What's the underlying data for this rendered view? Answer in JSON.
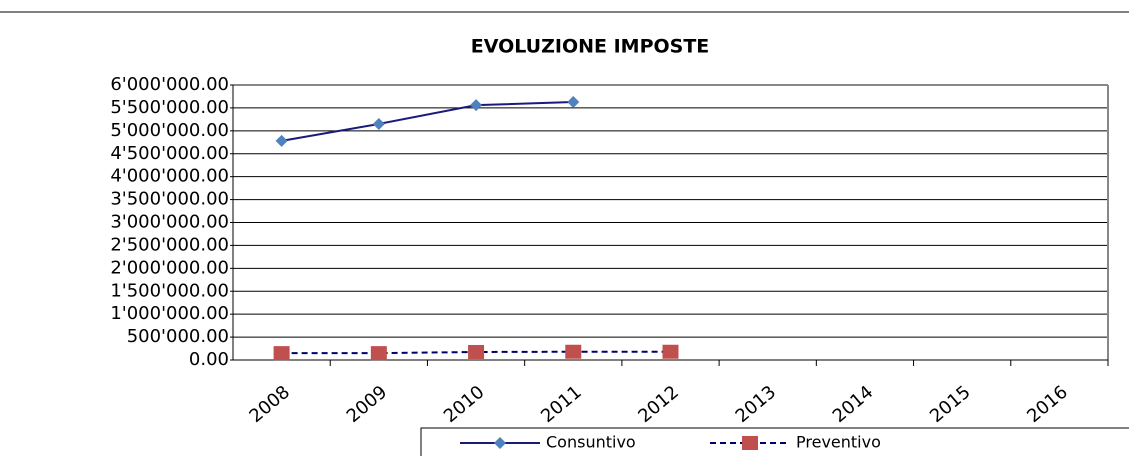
{
  "chart_data": {
    "type": "line",
    "title": "EVOLUZIONE IMPOSTE",
    "categories": [
      "2008",
      "2009",
      "2010",
      "2011",
      "2012",
      "2013",
      "2014",
      "2015",
      "2016"
    ],
    "series": [
      {
        "name": "Consuntivo",
        "color": "#1a1a7a",
        "marker_color": "#4f81bd",
        "marker": "diamond",
        "dash": false,
        "values": [
          4780000,
          5150000,
          5560000,
          5630000,
          null,
          null,
          null,
          null,
          null
        ]
      },
      {
        "name": "Preventivo",
        "color": "#00006e",
        "marker_color": "#c0504d",
        "marker": "square",
        "dash": true,
        "values": [
          150000,
          150000,
          175000,
          180000,
          180000,
          null,
          null,
          null,
          null
        ]
      }
    ],
    "ylim": [
      0,
      6000000
    ],
    "yticks": [
      {
        "value": 0,
        "label": "0.00"
      },
      {
        "value": 500000,
        "label": "500'000.00"
      },
      {
        "value": 1000000,
        "label": "1'000'000.00"
      },
      {
        "value": 1500000,
        "label": "1'500'000.00"
      },
      {
        "value": 2000000,
        "label": "2'000'000.00"
      },
      {
        "value": 2500000,
        "label": "2'500'000.00"
      },
      {
        "value": 3000000,
        "label": "3'000'000.00"
      },
      {
        "value": 3500000,
        "label": "3'500'000.00"
      },
      {
        "value": 4000000,
        "label": "4'000'000.00"
      },
      {
        "value": 4500000,
        "label": "4'500'000.00"
      },
      {
        "value": 5000000,
        "label": "5'000'000.00"
      },
      {
        "value": 5500000,
        "label": "5'500'000.00"
      },
      {
        "value": 6000000,
        "label": "6'000'000.00"
      }
    ],
    "grid": true,
    "legend": "bottom"
  }
}
